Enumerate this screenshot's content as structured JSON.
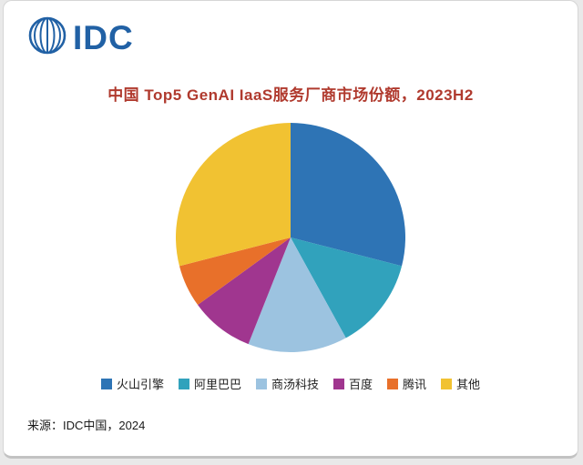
{
  "logo": {
    "text": "IDC",
    "icon": "idc-globe-icon",
    "brand_color": "#2161a5"
  },
  "source": {
    "text": "来源：IDC中国，2024"
  },
  "chart_data": {
    "type": "pie",
    "title": "中国 Top5 GenAI IaaS服务厂商市场份额，2023H2",
    "categories": [
      "火山引擎",
      "阿里巴巴",
      "商汤科技",
      "百度",
      "腾讯",
      "其他"
    ],
    "values": [
      29,
      13,
      14,
      9,
      6,
      29
    ],
    "colors": [
      "#2e74b5",
      "#31a2bc",
      "#9cc3e0",
      "#a0368f",
      "#e8702a",
      "#f1c232"
    ],
    "value_unit": "percent_estimated",
    "start_angle_deg": -90,
    "direction": "clockwise",
    "legend_position": "bottom",
    "data_labels": false,
    "title_color": "#b03a2e"
  }
}
